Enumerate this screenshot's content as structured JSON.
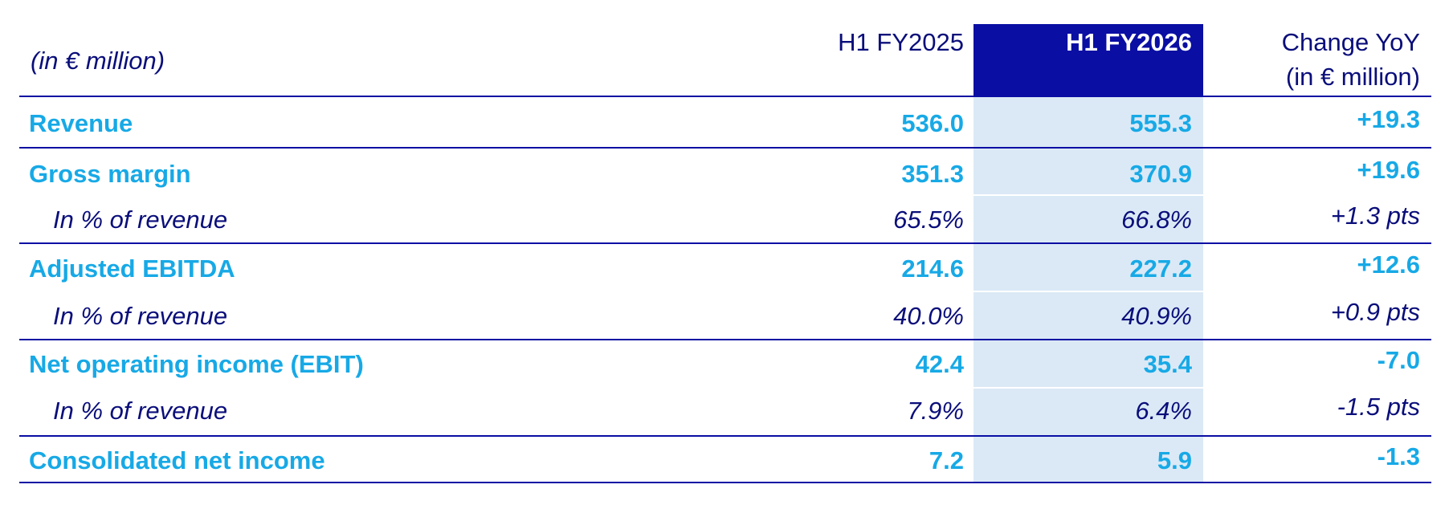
{
  "table": {
    "unit_label": "(in € million)",
    "headers": {
      "prev": "H1 FY2025",
      "curr": "H1 FY2026",
      "change_line1": "Change YoY",
      "change_line2": "(in € million)"
    },
    "rows": [
      {
        "label": "Revenue",
        "prev": "536.0",
        "curr": "555.3",
        "change": "+19.3"
      },
      {
        "label": "Gross margin",
        "prev": "351.3",
        "curr": "370.9",
        "change": "+19.6"
      },
      {
        "label": "In % of revenue",
        "prev": "65.5%",
        "curr": "66.8%",
        "change": "+1.3 pts"
      },
      {
        "label": "Adjusted EBITDA",
        "prev": "214.6",
        "curr": "227.2",
        "change": "+12.6"
      },
      {
        "label": "In % of revenue",
        "prev": "40.0%",
        "curr": "40.9%",
        "change": "+0.9 pts"
      },
      {
        "label": "Net operating income (EBIT)",
        "prev": "42.4",
        "curr": "35.4",
        "change": "-7.0"
      },
      {
        "label": "In % of revenue",
        "prev": "7.9%",
        "curr": "6.4%",
        "change": "-1.5 pts"
      },
      {
        "label": "Consolidated net income",
        "prev": "7.2",
        "curr": "5.9",
        "change": "-1.3"
      }
    ]
  },
  "colors": {
    "navy": "#0a0ea3",
    "text_navy": "#0a0e7a",
    "accent_cyan": "#17a9e6",
    "highlight_bg": "#dbe9f6"
  }
}
